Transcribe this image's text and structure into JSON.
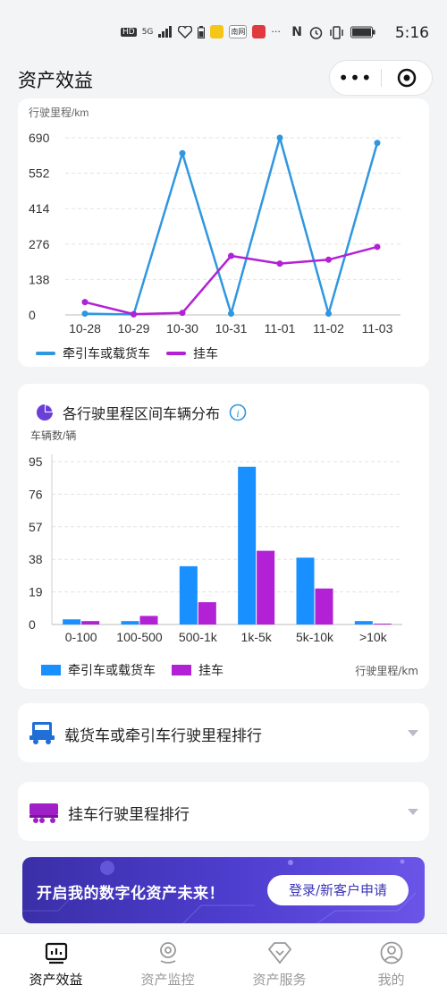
{
  "status_bar": {
    "network_badges": [
      "HD",
      "5G"
    ],
    "time": "5:16",
    "app_icon_text": "南网",
    "more_glyph": "···"
  },
  "header": {
    "title": "资产效益",
    "capsule_more": "•••"
  },
  "colors": {
    "tractor": "#2f97e0",
    "trailer": "#b321d6",
    "accent_purple": "#6a3fd9"
  },
  "line_chart": {
    "ylabel": "行驶里程/km",
    "legend": [
      "牵引车或载货车",
      "挂车"
    ]
  },
  "bar_chart": {
    "title": "各行驶里程区间车辆分布",
    "ylabel": "车辆数/辆",
    "xlabel": "行驶里程/km",
    "legend": [
      "牵引车或载货车",
      "挂车"
    ]
  },
  "chart_data": [
    {
      "type": "line",
      "ylabel": "行驶里程/km",
      "xlabel": "",
      "x": [
        "10-28",
        "10-29",
        "10-30",
        "10-31",
        "11-01",
        "11-02",
        "11-03"
      ],
      "yticks": [
        "0",
        "138",
        "276",
        "414",
        "552",
        "690"
      ],
      "ylim": [
        0,
        690
      ],
      "grid": true,
      "legend_position": "bottom",
      "series": [
        {
          "name": "牵引车或载货车",
          "color": "#2f97e0",
          "values": [
            5,
            2,
            630,
            5,
            690,
            5,
            670
          ]
        },
        {
          "name": "挂车",
          "color": "#b321d6",
          "values": [
            50,
            3,
            8,
            230,
            200,
            215,
            265
          ]
        }
      ]
    },
    {
      "type": "bar",
      "title": "各行驶里程区间车辆分布",
      "ylabel": "车辆数/辆",
      "xlabel": "行驶里程/km",
      "categories": [
        "0-100",
        "100-500",
        "500-1k",
        "1k-5k",
        "5k-10k",
        ">10k"
      ],
      "yticks": [
        "0",
        "19",
        "38",
        "57",
        "76",
        "95"
      ],
      "ylim": [
        0,
        95
      ],
      "grid": true,
      "legend_position": "bottom",
      "series": [
        {
          "name": "牵引车或载货车",
          "color": "#1890ff",
          "values": [
            3,
            2,
            34,
            92,
            39,
            2
          ]
        },
        {
          "name": "挂车",
          "color": "#b321d6",
          "values": [
            2,
            5,
            13,
            43,
            21,
            0.5
          ]
        }
      ]
    }
  ],
  "rankings": [
    {
      "label": "载货车或牵引车行驶里程排行"
    },
    {
      "label": "挂车行驶里程排行"
    }
  ],
  "banner": {
    "text": "开启我的数字化资产未来！",
    "button": "登录/新客户申请"
  },
  "tabbar": {
    "tabs": [
      {
        "label": "资产效益",
        "icon": "chart-report-icon",
        "active": true
      },
      {
        "label": "资产监控",
        "icon": "location-pin-icon",
        "active": false
      },
      {
        "label": "资产服务",
        "icon": "diamond-heart-icon",
        "active": false
      },
      {
        "label": "我的",
        "icon": "user-profile-icon",
        "active": false
      }
    ]
  }
}
